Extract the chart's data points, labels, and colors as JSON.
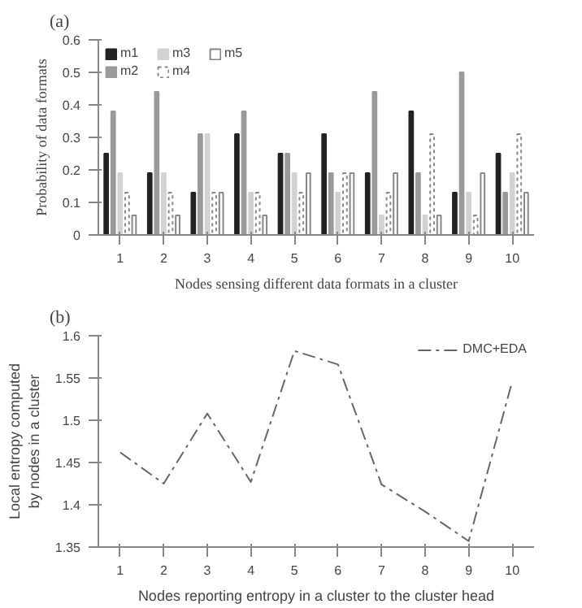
{
  "chart_data": [
    {
      "type": "bar",
      "annotations": [
        "(a)"
      ],
      "xlabel": "Nodes sensing different data formats in a cluster",
      "ylabel": "Probability of data formats",
      "categories": [
        "1",
        "2",
        "3",
        "4",
        "5",
        "6",
        "7",
        "8",
        "9",
        "10"
      ],
      "series": [
        {
          "name": "m1",
          "color": "#222222",
          "values": [
            0.25,
            0.19,
            0.13,
            0.31,
            0.25,
            0.31,
            0.19,
            0.38,
            0.13,
            0.25
          ]
        },
        {
          "name": "m2",
          "color": "#9a9a9a",
          "values": [
            0.38,
            0.44,
            0.31,
            0.38,
            0.25,
            0.19,
            0.44,
            0.19,
            0.5,
            0.13
          ]
        },
        {
          "name": "m3",
          "color": "#d2d2d2",
          "values": [
            0.19,
            0.19,
            0.31,
            0.13,
            0.19,
            0.13,
            0.06,
            0.06,
            0.13,
            0.19
          ]
        },
        {
          "name": "m4",
          "color": "#ffffff",
          "line_style": "dotted",
          "values": [
            0.13,
            0.13,
            0.13,
            0.13,
            0.13,
            0.19,
            0.13,
            0.31,
            0.06,
            0.31
          ]
        },
        {
          "name": "m5",
          "color": "#ffffff",
          "line_style": "solid",
          "values": [
            0.06,
            0.06,
            0.13,
            0.06,
            0.19,
            0.19,
            0.19,
            0.06,
            0.19,
            0.13
          ]
        }
      ],
      "ylim": [
        0,
        0.6
      ],
      "yticks": [
        0,
        0.1,
        0.2,
        0.3,
        0.4,
        0.5,
        0.6
      ],
      "grid": false,
      "legend": "top left"
    },
    {
      "type": "line",
      "annotations": [
        "(b)"
      ],
      "xlabel": "Nodes reporting entropy in a cluster to the cluster head",
      "ylabel": "Local entropy computed by nodes in a cluster",
      "x": [
        1,
        2,
        3,
        4,
        5,
        6,
        7,
        8,
        9,
        10
      ],
      "series": [
        {
          "name": "DMC+EDA",
          "color": "#666666",
          "values": [
            1.462,
            1.425,
            1.508,
            1.427,
            1.582,
            1.566,
            1.424,
            1.392,
            1.357,
            1.546
          ]
        }
      ],
      "line_style": "dashed",
      "marker": "none",
      "xlim": [
        0.5,
        10.5
      ],
      "xticks": [
        1,
        2,
        3,
        4,
        5,
        6,
        7,
        8,
        9,
        10
      ],
      "ylim": [
        1.35,
        1.6
      ],
      "yticks": [
        1.35,
        1.4,
        1.45,
        1.5,
        1.55,
        1.6
      ],
      "grid": false,
      "legend": "top right"
    }
  ]
}
